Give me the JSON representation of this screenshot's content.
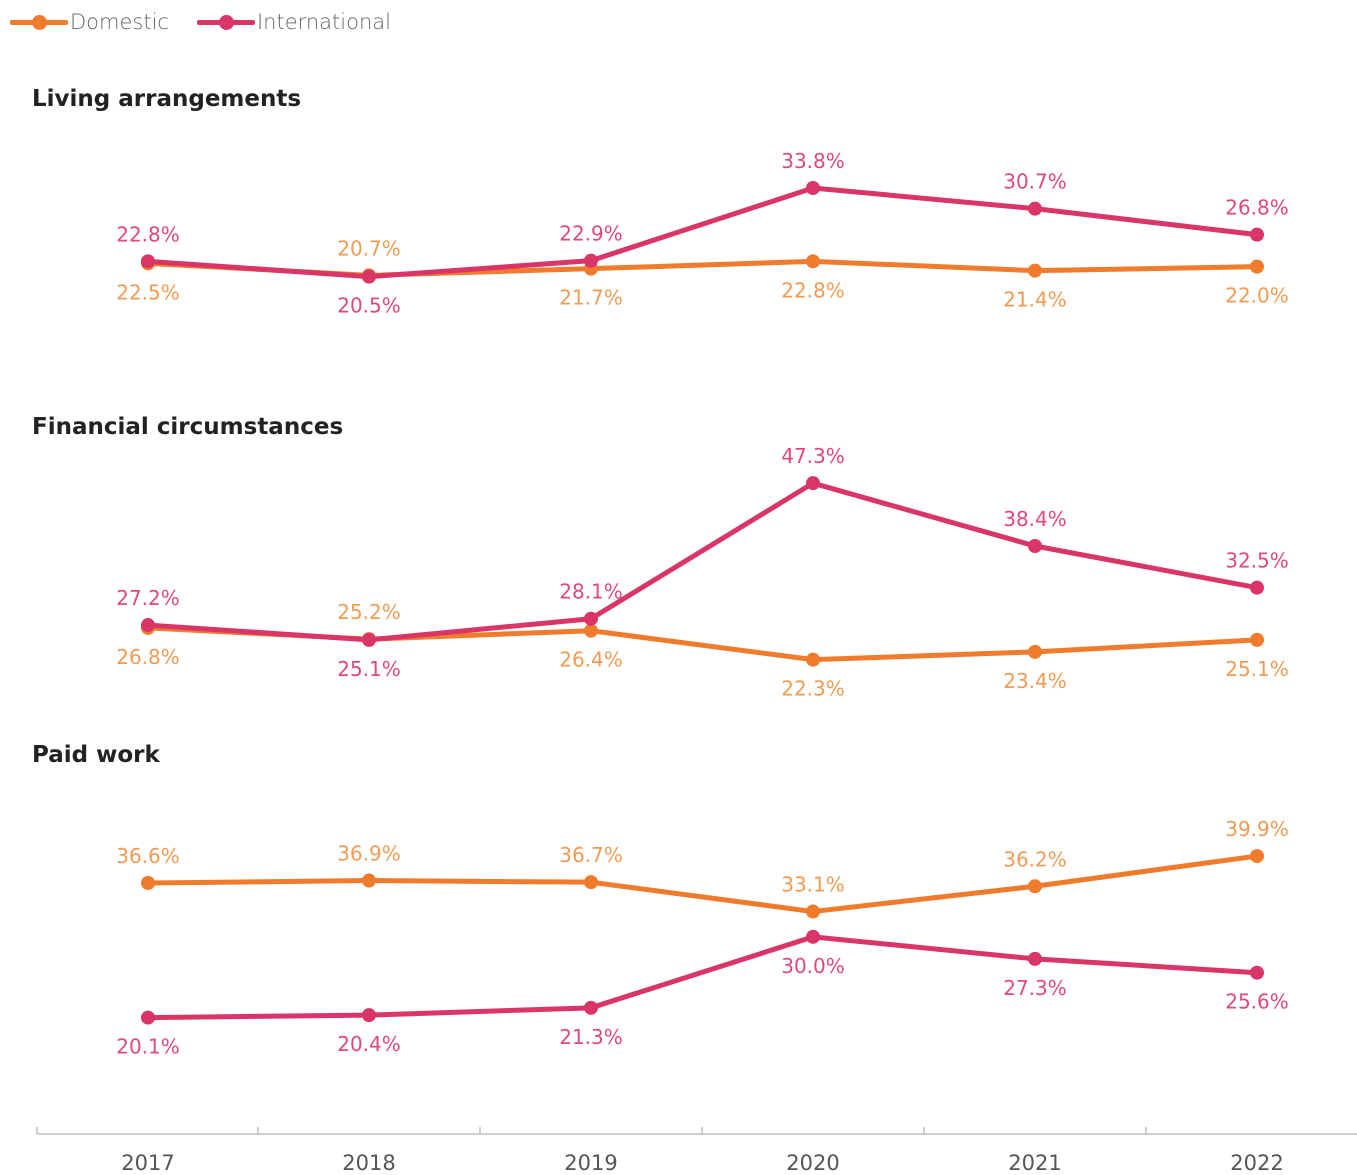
{
  "legend": {
    "domestic": "Domestic",
    "international": "International"
  },
  "colors": {
    "domestic": "#f07b2c",
    "international": "#d93566",
    "domestic_label": "#f39a53",
    "international_label": "#e0497a",
    "axis": "#bfbfbf",
    "tick_label": "#555555"
  },
  "chart_data": [
    {
      "type": "line",
      "title": "Living arrangements",
      "x": [
        "2017",
        "2018",
        "2019",
        "2020",
        "2021",
        "2022"
      ],
      "series": [
        {
          "name": "Domestic",
          "values": [
            22.5,
            20.7,
            21.7,
            22.8,
            21.4,
            22.0
          ],
          "labels": [
            "22.5%",
            "20.7%",
            "21.7%",
            "22.8%",
            "21.4%",
            "22.0%"
          ]
        },
        {
          "name": "International",
          "values": [
            22.8,
            20.5,
            22.9,
            33.8,
            30.7,
            26.8
          ],
          "labels": [
            "22.8%",
            "20.5%",
            "22.9%",
            "33.8%",
            "30.7%",
            "26.8%"
          ]
        }
      ],
      "ylim": [
        5,
        38
      ]
    },
    {
      "type": "line",
      "title": "Financial circumstances",
      "x": [
        "2017",
        "2018",
        "2019",
        "2020",
        "2021",
        "2022"
      ],
      "series": [
        {
          "name": "Domestic",
          "values": [
            26.8,
            25.2,
            26.4,
            22.3,
            23.4,
            25.1
          ],
          "labels": [
            "26.8%",
            "25.2%",
            "26.4%",
            "22.3%",
            "23.4%",
            "25.1%"
          ]
        },
        {
          "name": "International",
          "values": [
            27.2,
            25.1,
            28.1,
            47.3,
            38.4,
            32.5
          ],
          "labels": [
            "27.2%",
            "25.1%",
            "28.1%",
            "47.3%",
            "38.4%",
            "32.5%"
          ]
        }
      ],
      "ylim": [
        18,
        52
      ]
    },
    {
      "type": "line",
      "title": "Paid work",
      "x": [
        "2017",
        "2018",
        "2019",
        "2020",
        "2021",
        "2022"
      ],
      "series": [
        {
          "name": "Domestic",
          "values": [
            36.6,
            36.9,
            36.7,
            33.1,
            36.2,
            39.9
          ],
          "labels": [
            "36.6%",
            "36.9%",
            "36.7%",
            "33.1%",
            "36.2%",
            "39.9%"
          ]
        },
        {
          "name": "International",
          "values": [
            20.1,
            20.4,
            21.3,
            30.0,
            27.3,
            25.6
          ],
          "labels": [
            "20.1%",
            "20.4%",
            "21.3%",
            "30.0%",
            "27.3%",
            "25.6%"
          ]
        }
      ],
      "ylim": [
        10,
        48
      ]
    }
  ]
}
